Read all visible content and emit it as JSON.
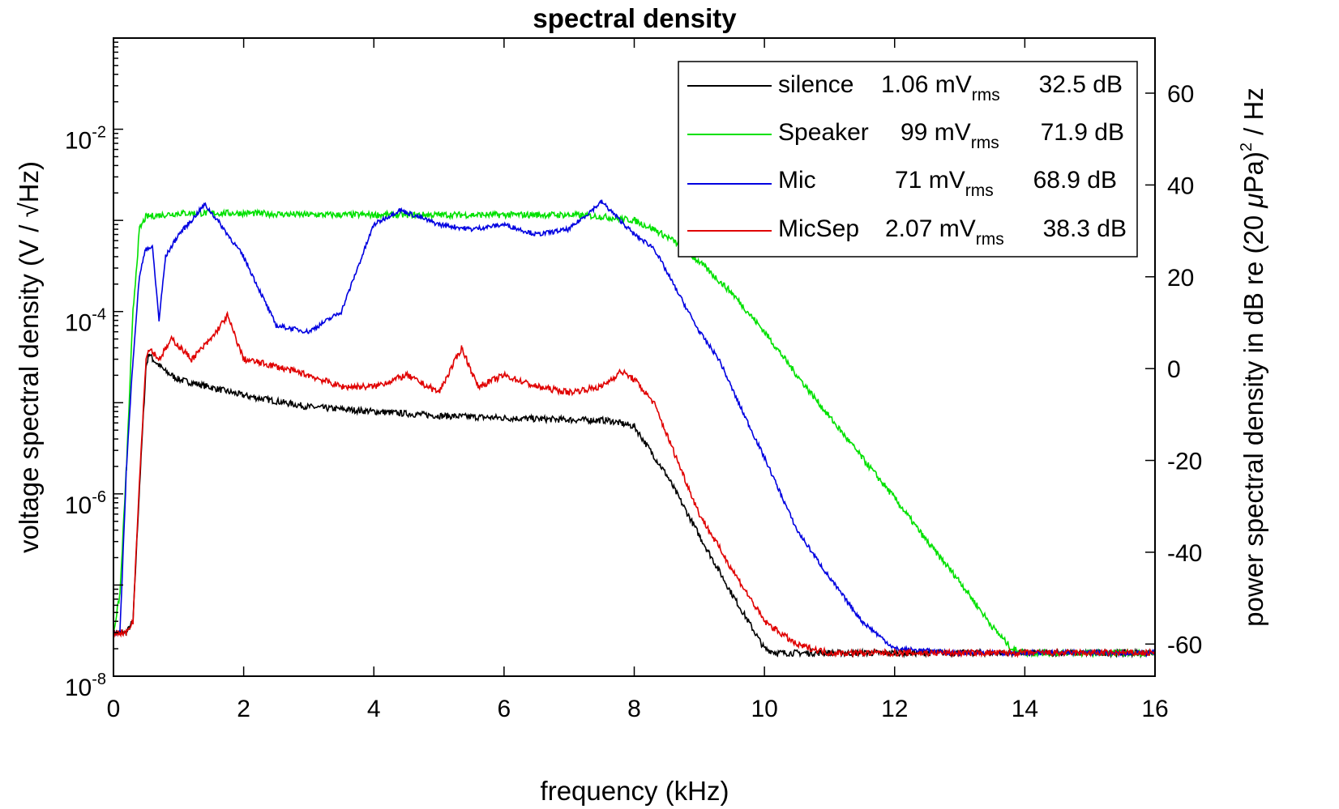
{
  "chart_data": {
    "type": "line",
    "title": "spectral density",
    "xlabel": "frequency (kHz)",
    "ylabel": "voltage spectral density  (V / √Hz)",
    "ylabel2_prefix": "power spectral density in dB re (20 ",
    "ylabel2_mu": "μ",
    "ylabel2_mid": "Pa)",
    "ylabel2_sup": "2",
    "ylabel2_suffix": " / Hz",
    "xlim": [
      0,
      16
    ],
    "ylim": [
      1e-08,
      0.1
    ],
    "yscale": "log",
    "ylim_right": [
      -67,
      72
    ],
    "x_ticks": [
      "0",
      "2",
      "4",
      "6",
      "8",
      "10",
      "12",
      "14",
      "16"
    ],
    "y_ticks": [
      {
        "base": "10",
        "exp": "-8"
      },
      {
        "base": "10",
        "exp": "-6"
      },
      {
        "base": "10",
        "exp": "-4"
      },
      {
        "base": "10",
        "exp": "-2"
      }
    ],
    "y_right_ticks": [
      "-60",
      "-40",
      "-20",
      "0",
      "20",
      "40",
      "60"
    ],
    "x_unit": "kHz",
    "series": [
      {
        "name": "silence",
        "color": "#000000",
        "rms": "1.06 mV",
        "rms_sub": "rms",
        "db": "32.5 dB",
        "x": [
          0,
          0.1,
          0.2,
          0.3,
          0.4,
          0.5,
          0.55,
          0.6,
          0.8,
          1,
          2,
          3,
          4,
          5,
          6,
          7,
          7.6,
          8,
          8.5,
          9,
          9.5,
          9.8,
          10,
          10.2,
          10.5,
          11,
          12,
          13,
          14,
          15,
          16
        ],
        "y": [
          3e-08,
          3e-08,
          3e-08,
          4e-08,
          1.2e-06,
          2.5e-05,
          3.5e-05,
          3e-05,
          2.2e-05,
          1.8e-05,
          1.2e-05,
          9e-06,
          8e-06,
          7.2e-06,
          6.8e-06,
          6.5e-06,
          6.4e-06,
          5.5e-06,
          1.6e-06,
          3.5e-07,
          8e-08,
          3.5e-08,
          2e-08,
          1.8e-08,
          1.8e-08,
          1.8e-08,
          1.8e-08,
          1.8e-08,
          1.8e-08,
          1.8e-08,
          1.8e-08
        ]
      },
      {
        "name": "Speaker",
        "color": "#00e000",
        "rms": "99 mV",
        "rms_sub": "rms",
        "db": "71.9 dB",
        "x": [
          0,
          0.1,
          0.2,
          0.3,
          0.4,
          0.5,
          1,
          2,
          3,
          4,
          5,
          6,
          7,
          7.5,
          8,
          8.3,
          8.6,
          9,
          9.5,
          10,
          10.5,
          11,
          11.5,
          12,
          12.5,
          13,
          13.5,
          13.8,
          14,
          15,
          16
        ],
        "y": [
          3e-08,
          8e-08,
          2e-06,
          0.0001,
          0.0008,
          0.0011,
          0.0012,
          0.0012,
          0.00115,
          0.00115,
          0.00115,
          0.00115,
          0.00115,
          0.0011,
          0.001,
          0.0008,
          0.0006,
          0.00035,
          0.00016,
          6e-05,
          2e-05,
          7e-06,
          2.5e-06,
          9e-07,
          3e-07,
          1.1e-07,
          3.5e-08,
          2e-08,
          1.8e-08,
          1.8e-08,
          1.8e-08
        ]
      },
      {
        "name": "Mic",
        "color": "#0000e0",
        "rms": "71 mV",
        "rms_sub": "rms",
        "db": "68.9 dB",
        "x": [
          0,
          0.1,
          0.2,
          0.3,
          0.4,
          0.5,
          0.6,
          0.7,
          0.8,
          1,
          1.2,
          1.4,
          1.6,
          2,
          2.5,
          3,
          3.5,
          4,
          4.4,
          5,
          5.5,
          6,
          6.5,
          7,
          7.5,
          8,
          8.3,
          8.6,
          9,
          9.3,
          9.6,
          10,
          10.5,
          11,
          11.5,
          12,
          13,
          14,
          15,
          16
        ],
        "y": [
          3e-08,
          3e-08,
          2e-06,
          3e-05,
          0.00025,
          0.0005,
          0.0005,
          8e-05,
          0.0004,
          0.0007,
          0.001,
          0.0015,
          0.001,
          0.0004,
          7e-05,
          6e-05,
          0.0001,
          0.0009,
          0.0013,
          0.0009,
          0.0008,
          0.0009,
          0.0007,
          0.0008,
          0.0016,
          0.0007,
          0.0005,
          0.0002,
          6e-05,
          3e-05,
          1e-05,
          2.5e-06,
          4e-07,
          1.2e-07,
          4e-08,
          2e-08,
          1.8e-08,
          1.8e-08,
          1.8e-08,
          1.8e-08
        ]
      },
      {
        "name": "MicSep",
        "color": "#e00000",
        "rms": "2.07 mV",
        "rms_sub": "rms",
        "db": "38.3 dB",
        "x": [
          0,
          0.1,
          0.2,
          0.3,
          0.4,
          0.5,
          0.55,
          0.7,
          0.9,
          1.2,
          1.5,
          1.75,
          2,
          2.5,
          3,
          3.5,
          4,
          4.5,
          5,
          5.35,
          5.6,
          6,
          6.5,
          7,
          7.5,
          7.8,
          8,
          8.3,
          8.6,
          9,
          9.5,
          10,
          10.5,
          11,
          12,
          13,
          14,
          15,
          16
        ],
        "y": [
          3e-08,
          3e-08,
          3e-08,
          4e-08,
          1.5e-06,
          3e-05,
          4e-05,
          3e-05,
          5e-05,
          3e-05,
          5e-05,
          9e-05,
          3e-05,
          2.5e-05,
          2e-05,
          1.5e-05,
          1.5e-05,
          2e-05,
          1.3e-05,
          4e-05,
          1.5e-05,
          2e-05,
          1.5e-05,
          1.3e-05,
          1.5e-05,
          2.2e-05,
          1.8e-05,
          1e-05,
          3e-06,
          6e-07,
          1.5e-07,
          4e-08,
          2.2e-08,
          1.8e-08,
          1.8e-08,
          1.8e-08,
          1.8e-08,
          1.8e-08,
          1.8e-08
        ]
      }
    ]
  }
}
